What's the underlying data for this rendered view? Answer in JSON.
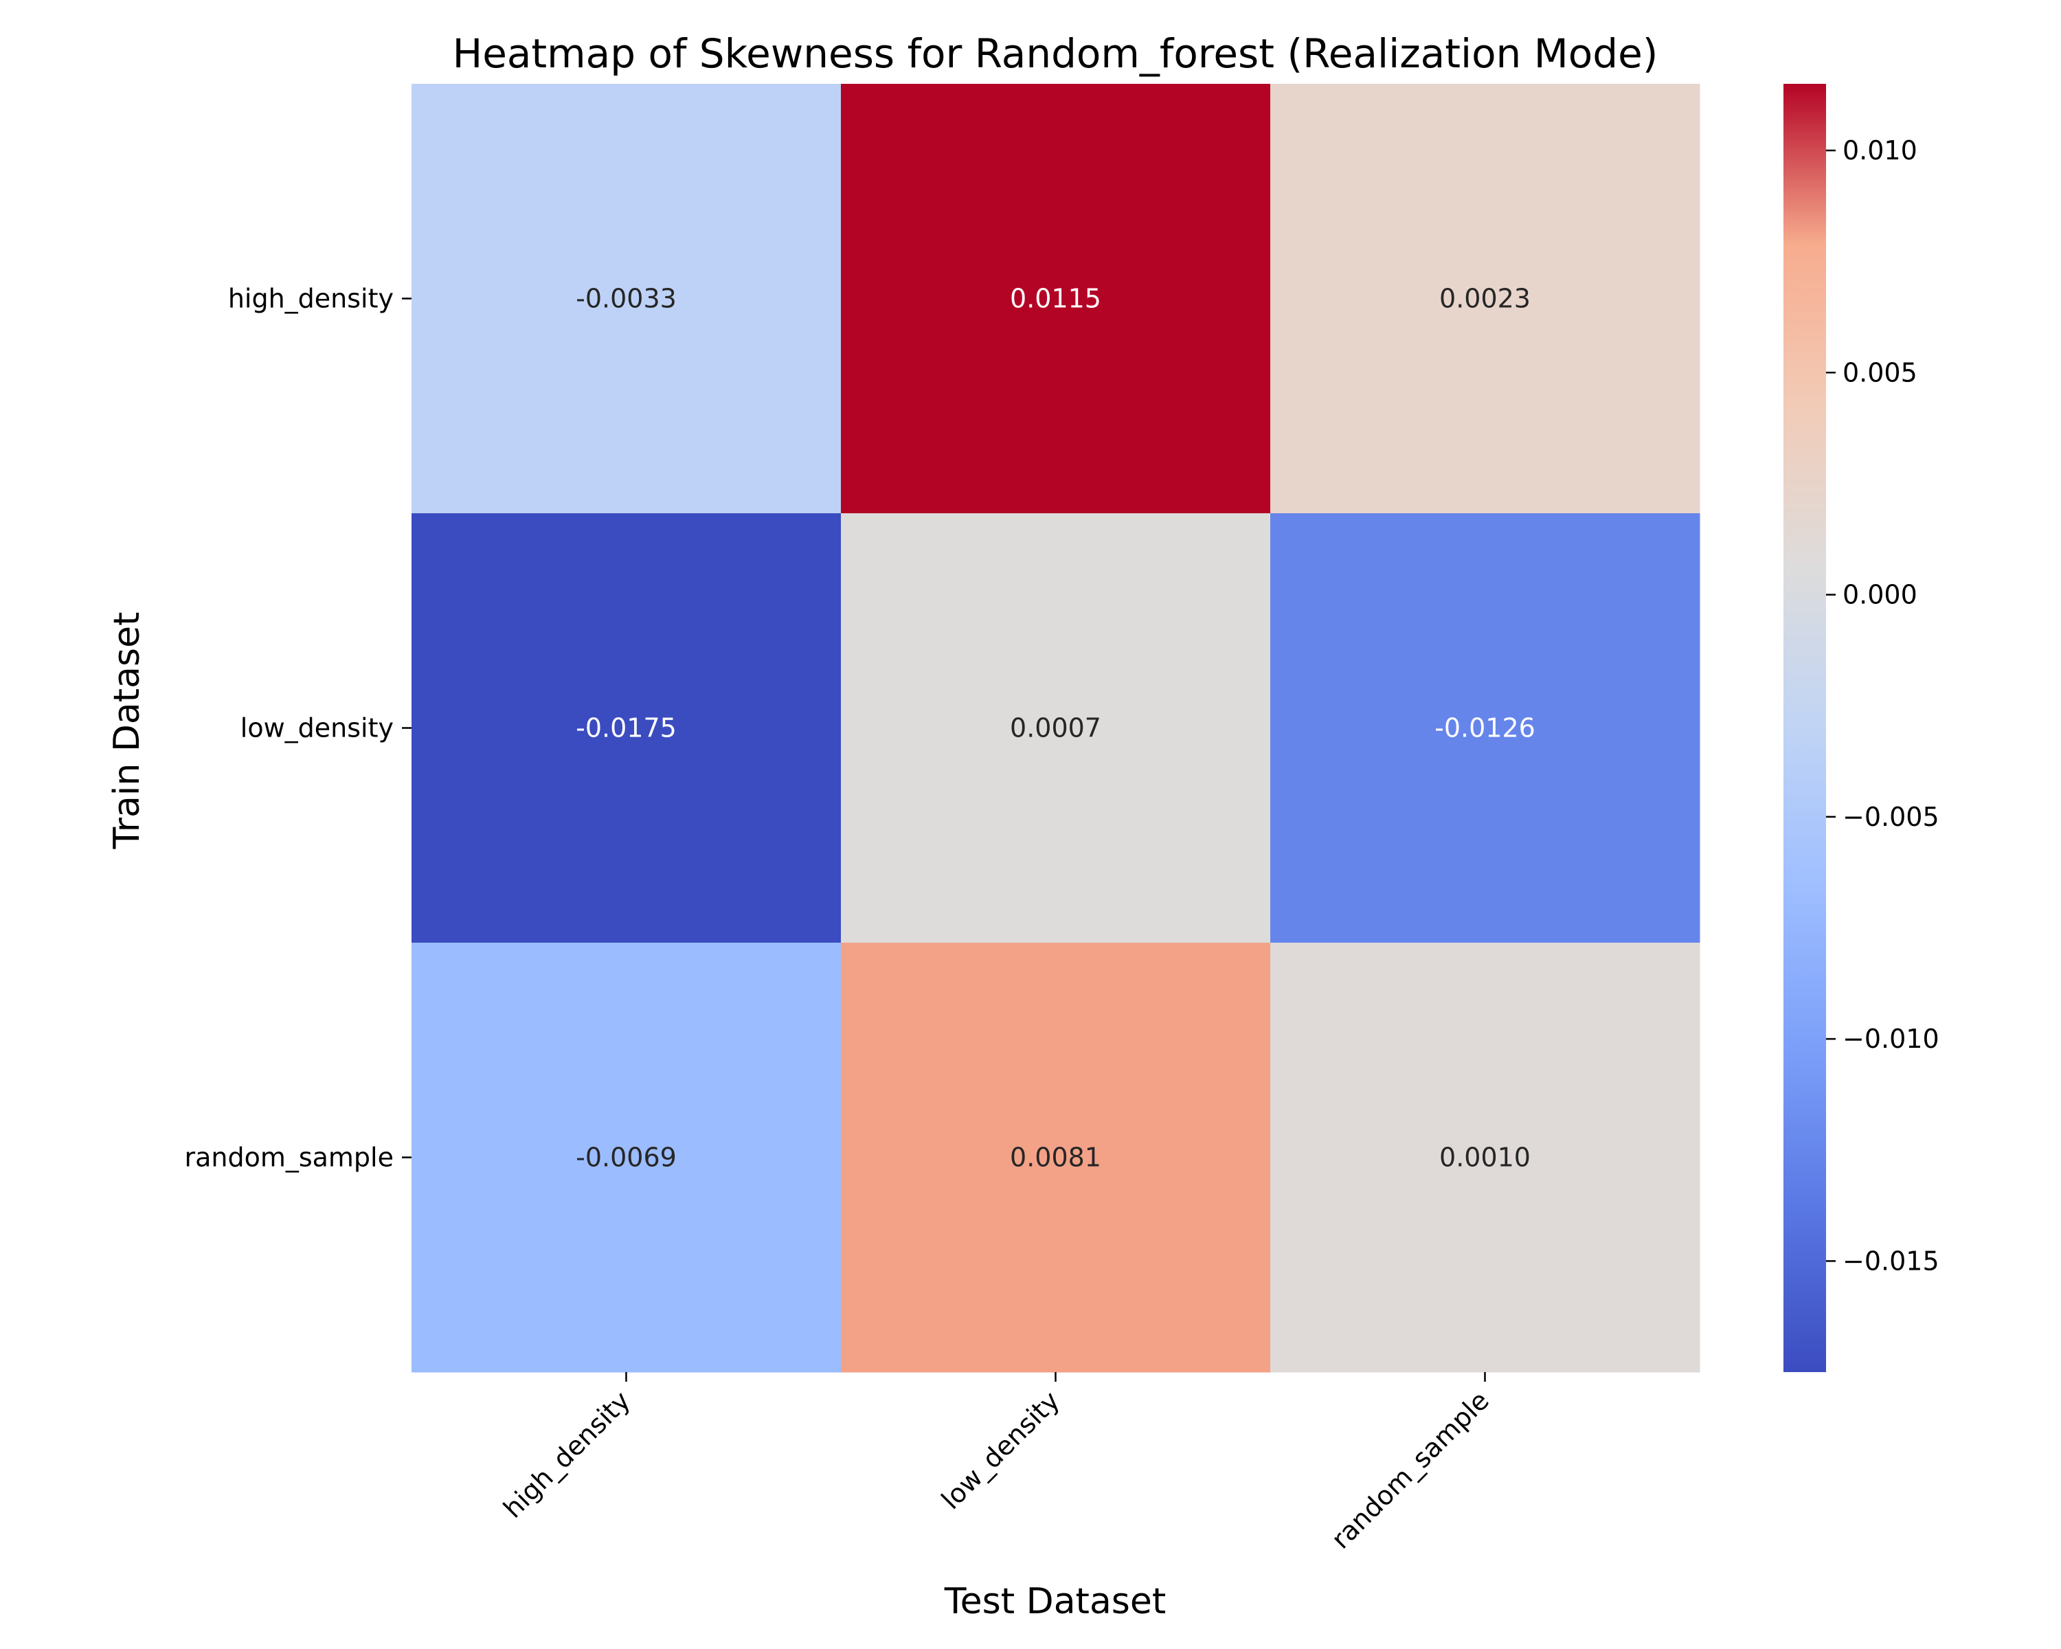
{
  "chart_data": {
    "type": "heatmap",
    "title": "Heatmap of Skewness for Random_forest (Realization Mode)",
    "xlabel": "Test Dataset",
    "ylabel": "Train Dataset",
    "x_categories": [
      "high_density",
      "low_density",
      "random_sample"
    ],
    "y_categories": [
      "high_density",
      "low_density",
      "random_sample"
    ],
    "values": [
      [
        -0.0033,
        0.0115,
        0.0023
      ],
      [
        -0.0175,
        0.0007,
        -0.0126
      ],
      [
        -0.0069,
        0.0081,
        0.001
      ]
    ],
    "cell_labels": [
      [
        "-0.0033",
        "0.0115",
        "0.0023"
      ],
      [
        "-0.0175",
        "0.0007",
        "-0.0126"
      ],
      [
        "-0.0069",
        "0.0081",
        "0.0010"
      ]
    ],
    "colormap": "coolwarm",
    "vmin": -0.0175,
    "vmax": 0.0115,
    "colorbar_ticks": [
      0.01,
      0.005,
      0.0,
      -0.005,
      -0.01,
      -0.015
    ],
    "colorbar_tick_labels": [
      "0.010",
      "0.005",
      "0.000",
      "−0.005",
      "−0.010",
      "−0.015"
    ]
  }
}
